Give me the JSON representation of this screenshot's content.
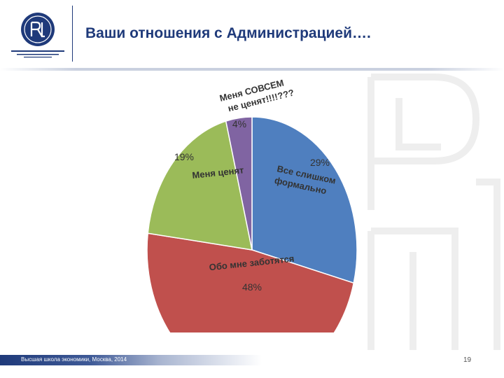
{
  "slide": {
    "title": "Ваши отношения с Администрацией….",
    "footer_text": "Высшая школа экономики, Москва, 2014",
    "page_number": "19"
  },
  "colors": {
    "brand": "#1f3a7a",
    "slice_blue": "#4f7fbf",
    "slice_red": "#c0504d",
    "slice_green": "#9bbb59",
    "slice_purple": "#8064a2"
  },
  "icons": {
    "logo": "hse-logo-icon"
  },
  "chart_data": {
    "type": "pie",
    "values": [
      29,
      48,
      19,
      4
    ],
    "percent_labels": [
      "29%",
      "48%",
      "19%",
      "4%"
    ],
    "category_labels": [
      [
        "Все  слишком",
        "формально"
      ],
      [
        "Обо мне заботятся"
      ],
      [
        "Меня ценят"
      ],
      [
        "Меня СОВСЕМ",
        "не ценят!!!!???"
      ]
    ],
    "colors": [
      "#4f7fbf",
      "#c0504d",
      "#9bbb59",
      "#8064a2"
    ]
  }
}
